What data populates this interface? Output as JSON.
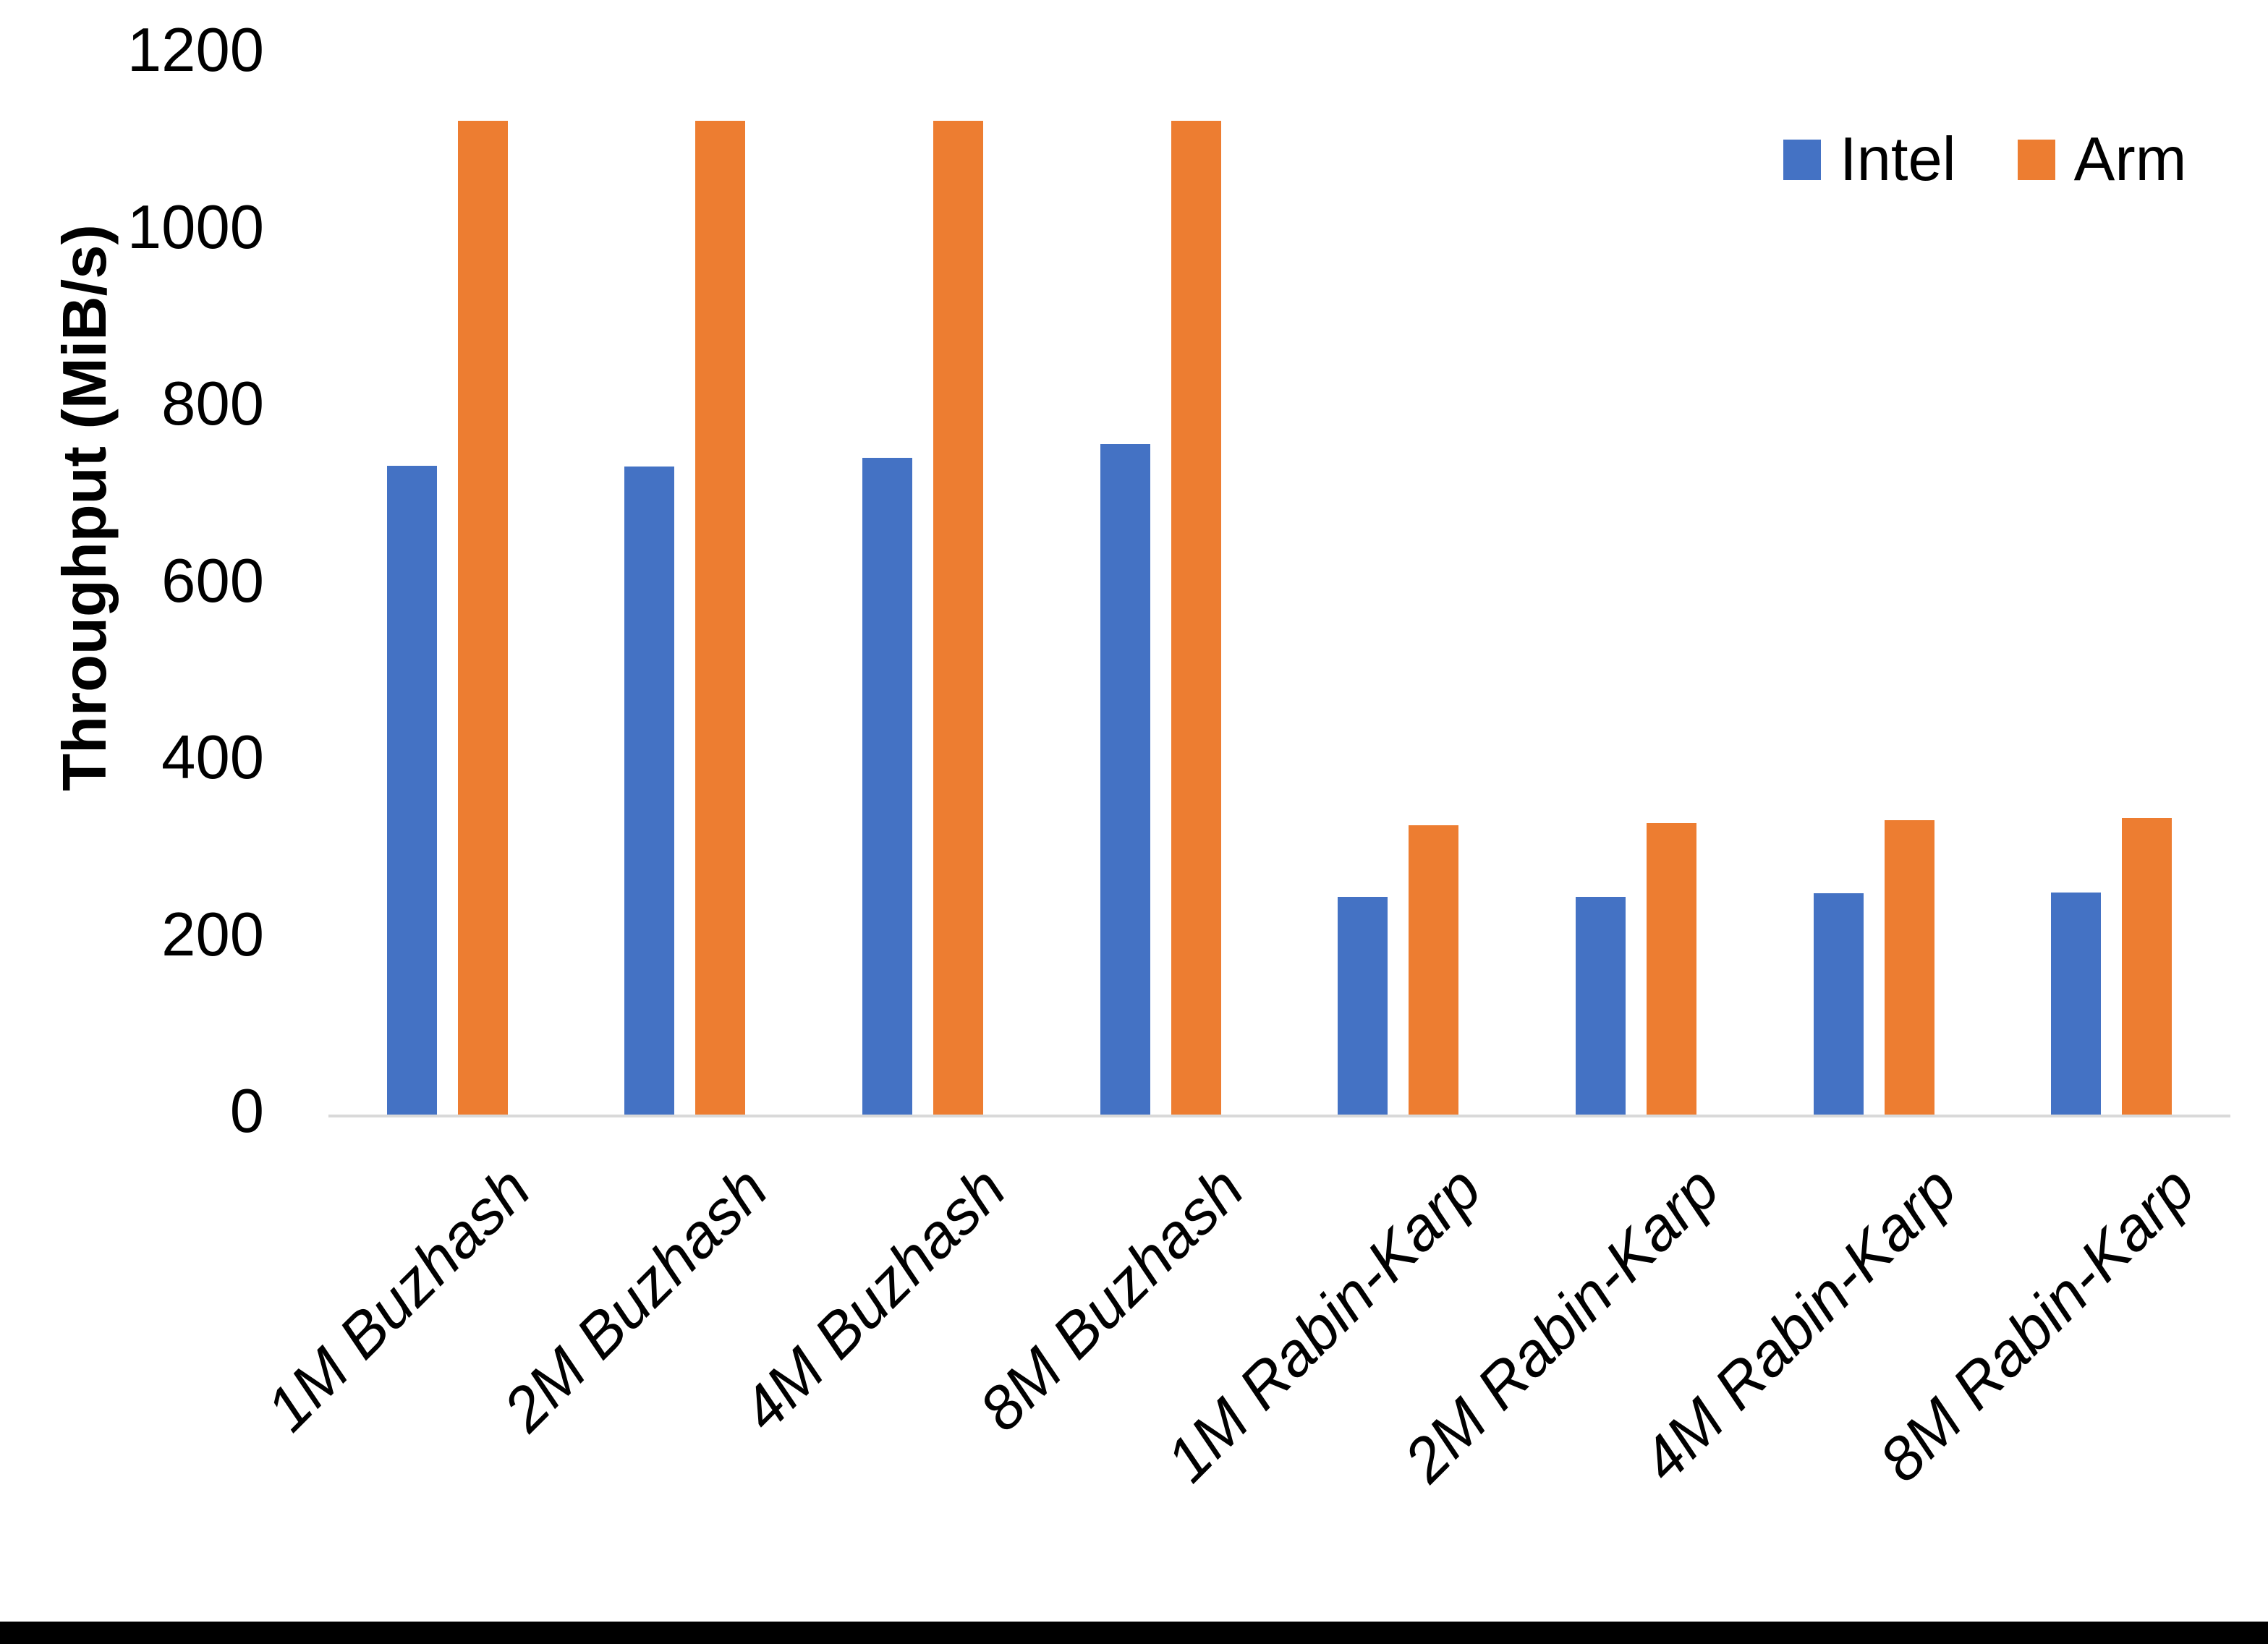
{
  "chart_data": {
    "type": "bar",
    "title": "",
    "categories": [
      "1M Buzhash",
      "2M Buzhash",
      "4M Buzhash",
      "8M Buzhash",
      "1M Rabin-Karp",
      "2M Rabin-Karp",
      "4M Rabin-Karp",
      "8M Rabin-Karp"
    ],
    "series": [
      {
        "name": "Intel",
        "color": "#4472C4",
        "values": [
          734,
          733,
          743,
          758,
          246,
          246,
          250,
          251
        ]
      },
      {
        "name": "Arm",
        "color": "#ED7D31",
        "values": [
          1124,
          1124,
          1124,
          1124,
          327,
          330,
          333,
          335
        ]
      }
    ],
    "xlabel": "",
    "ylabel": "Throughput (MiB/s)",
    "ylim": [
      0,
      1200
    ],
    "yticks": [
      0,
      200,
      400,
      600,
      800,
      1000,
      1200
    ],
    "grid": false,
    "legend_position": "top-right"
  },
  "colors": {
    "background": "#FFFFFF",
    "text": "#000000",
    "axis_line": "#D9D9D9",
    "bottom_border": "#000000",
    "intel": "#4472C4",
    "arm": "#ED7D31"
  }
}
